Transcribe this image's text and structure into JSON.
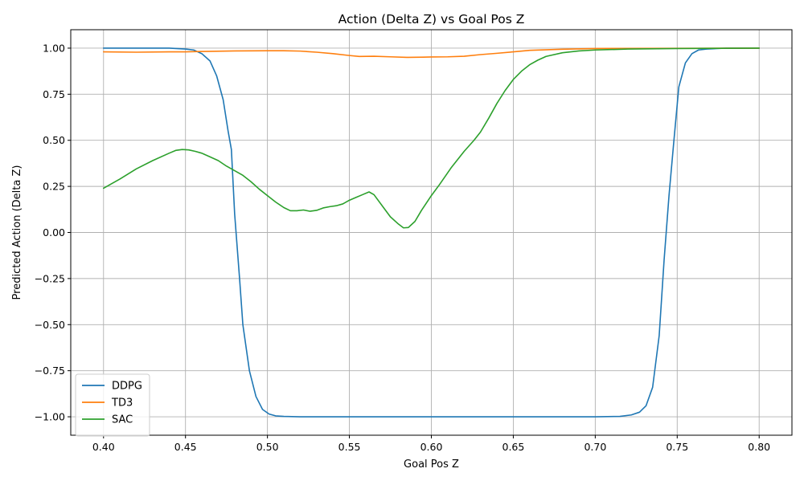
{
  "chart_data": {
    "type": "line",
    "title": "Action (Delta Z) vs Goal Pos Z",
    "xlabel": "Goal Pos Z",
    "ylabel": "Predicted Action (Delta Z)",
    "xlim": [
      0.38,
      0.82
    ],
    "ylim": [
      -1.1,
      1.1
    ],
    "xticks": [
      0.4,
      0.45,
      0.5,
      0.55,
      0.6,
      0.65,
      0.7,
      0.75,
      0.8
    ],
    "xtick_labels": [
      "0.40",
      "0.45",
      "0.50",
      "0.55",
      "0.60",
      "0.65",
      "0.70",
      "0.75",
      "0.80"
    ],
    "yticks": [
      1.0,
      0.75,
      0.5,
      0.25,
      0.0,
      -0.25,
      -0.5,
      -0.75,
      -1.0
    ],
    "ytick_labels": [
      "1.00",
      "0.75",
      "0.50",
      "0.25",
      "0.00",
      "−0.25",
      "−0.50",
      "−0.75",
      "−1.00"
    ],
    "grid": true,
    "legend_position": "lower-left",
    "series": [
      {
        "name": "DDPG",
        "color": "#1f77b4",
        "x": [
          0.4,
          0.42,
          0.44,
          0.45,
          0.455,
          0.46,
          0.465,
          0.469,
          0.473,
          0.476,
          0.478,
          0.48,
          0.483,
          0.485,
          0.489,
          0.493,
          0.497,
          0.501,
          0.505,
          0.51,
          0.52,
          0.55,
          0.6,
          0.65,
          0.7,
          0.715,
          0.722,
          0.727,
          0.731,
          0.735,
          0.739,
          0.742,
          0.745,
          0.748,
          0.751,
          0.755,
          0.759,
          0.763,
          0.768,
          0.78,
          0.8
        ],
        "y": [
          1.0,
          1.0,
          1.0,
          0.995,
          0.99,
          0.97,
          0.93,
          0.85,
          0.72,
          0.55,
          0.45,
          0.1,
          -0.25,
          -0.5,
          -0.75,
          -0.89,
          -0.96,
          -0.985,
          -0.995,
          -0.998,
          -1.0,
          -1.0,
          -1.0,
          -1.0,
          -1.0,
          -0.998,
          -0.99,
          -0.975,
          -0.94,
          -0.84,
          -0.56,
          -0.15,
          0.2,
          0.5,
          0.79,
          0.92,
          0.97,
          0.99,
          0.995,
          1.0,
          1.0
        ]
      },
      {
        "name": "TD3",
        "color": "#ff7f0e",
        "x": [
          0.4,
          0.42,
          0.44,
          0.45,
          0.46,
          0.48,
          0.5,
          0.51,
          0.52,
          0.53,
          0.54,
          0.55,
          0.556,
          0.565,
          0.575,
          0.585,
          0.595,
          0.6,
          0.61,
          0.62,
          0.63,
          0.64,
          0.65,
          0.66,
          0.68,
          0.7,
          0.75,
          0.8
        ],
        "y": [
          0.98,
          0.978,
          0.98,
          0.98,
          0.982,
          0.985,
          0.986,
          0.986,
          0.984,
          0.978,
          0.97,
          0.96,
          0.955,
          0.956,
          0.953,
          0.95,
          0.951,
          0.952,
          0.953,
          0.956,
          0.965,
          0.972,
          0.98,
          0.988,
          0.994,
          0.998,
          0.999,
          1.0
        ]
      },
      {
        "name": "SAC",
        "color": "#2ca02c",
        "x": [
          0.4,
          0.41,
          0.42,
          0.43,
          0.44,
          0.444,
          0.448,
          0.452,
          0.456,
          0.46,
          0.465,
          0.47,
          0.475,
          0.48,
          0.485,
          0.49,
          0.495,
          0.5,
          0.505,
          0.51,
          0.514,
          0.518,
          0.522,
          0.526,
          0.53,
          0.534,
          0.538,
          0.542,
          0.546,
          0.55,
          0.554,
          0.558,
          0.562,
          0.565,
          0.57,
          0.575,
          0.58,
          0.583,
          0.586,
          0.59,
          0.594,
          0.6,
          0.605,
          0.612,
          0.62,
          0.626,
          0.63,
          0.635,
          0.64,
          0.645,
          0.65,
          0.655,
          0.66,
          0.665,
          0.67,
          0.68,
          0.69,
          0.7,
          0.72,
          0.75,
          0.8
        ],
        "y": [
          0.24,
          0.29,
          0.345,
          0.39,
          0.43,
          0.445,
          0.45,
          0.448,
          0.44,
          0.43,
          0.41,
          0.39,
          0.36,
          0.335,
          0.31,
          0.275,
          0.235,
          0.2,
          0.165,
          0.135,
          0.118,
          0.118,
          0.122,
          0.115,
          0.12,
          0.133,
          0.14,
          0.145,
          0.155,
          0.175,
          0.19,
          0.205,
          0.22,
          0.205,
          0.145,
          0.085,
          0.045,
          0.025,
          0.027,
          0.06,
          0.12,
          0.2,
          0.26,
          0.35,
          0.44,
          0.5,
          0.545,
          0.62,
          0.7,
          0.77,
          0.83,
          0.875,
          0.91,
          0.935,
          0.955,
          0.975,
          0.985,
          0.99,
          0.995,
          0.998,
          1.0
        ]
      }
    ]
  }
}
